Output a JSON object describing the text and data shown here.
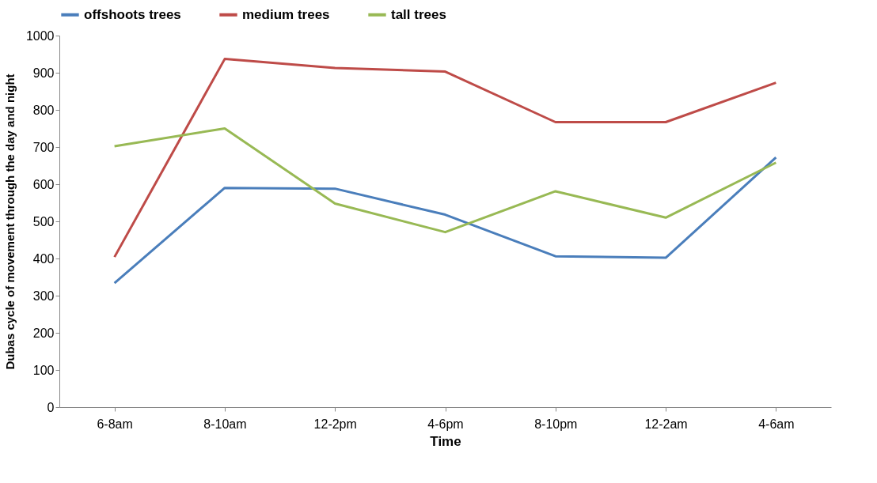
{
  "chart_data": {
    "type": "line",
    "xlabel": "Time",
    "ylabel": "Dubas cycle of movement through the day and night",
    "categories": [
      "6-8am",
      "8-10am",
      "12-2pm",
      "4-6pm",
      "8-10pm",
      "12-2am",
      "4-6am"
    ],
    "series": [
      {
        "name": "offshoots trees",
        "color": "#4a7ebb",
        "values": [
          334,
          590,
          588,
          518,
          406,
          402,
          672
        ]
      },
      {
        "name": "medium trees",
        "color": "#be4b48",
        "values": [
          404,
          937,
          913,
          903,
          767,
          767,
          873
        ]
      },
      {
        "name": "tall trees",
        "color": "#98b954",
        "values": [
          702,
          750,
          548,
          471,
          581,
          510,
          658
        ]
      }
    ],
    "ylim": [
      0,
      1000
    ],
    "yticks": [
      0,
      100,
      200,
      300,
      400,
      500,
      600,
      700,
      800,
      900,
      1000
    ],
    "grid": false,
    "legend": "top",
    "marker": "none",
    "line_style": "solid"
  }
}
